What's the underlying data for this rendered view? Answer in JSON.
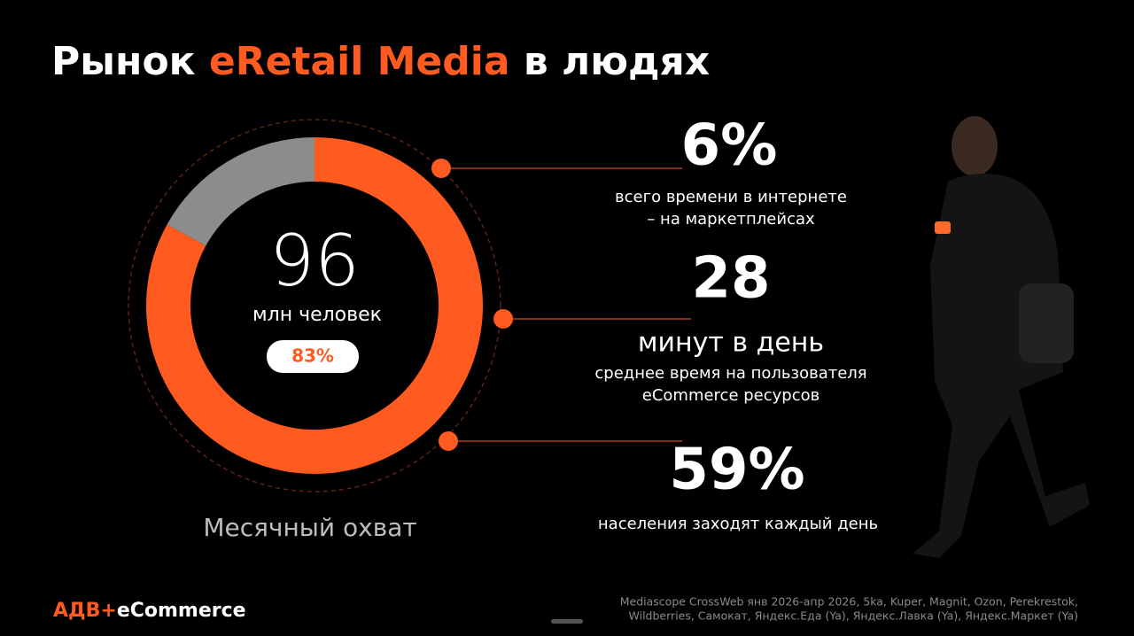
{
  "title_parts": [
    "Рынок ",
    "eRetail Media",
    " в людях"
  ],
  "chart_data": {
    "type": "donut",
    "values": [
      83,
      17
    ],
    "colors": [
      "#ff5a1f",
      "#8c8c8c"
    ],
    "value_labels": [
      "83%",
      null
    ],
    "center_value": "96",
    "center_label": "млн человек",
    "caption": "Месячный охват"
  },
  "stats": [
    {
      "value": "6%",
      "lines": [
        "всего времени в интернете",
        "– на маркетплейсах"
      ]
    },
    {
      "value": "28",
      "lines": [
        "минут в день",
        "среднее время на пользователя",
        "eCommerce ресурсов"
      ]
    },
    {
      "value": "59%",
      "lines": [
        "населения заходят каждый день"
      ]
    }
  ],
  "brand": {
    "accent": "АДВ+",
    "text": "eCommerce"
  },
  "source": [
    "Mediascope CrossWeb янв 2026-апр 2026, 5ka, Kuper, Magnit, Ozon, Perekrestok,",
    "Wildberries, Самокат, Яндекс.Еда (Ya), Яндекс.Лавка (Ya), Яндекс.Маркет (Ya)"
  ]
}
